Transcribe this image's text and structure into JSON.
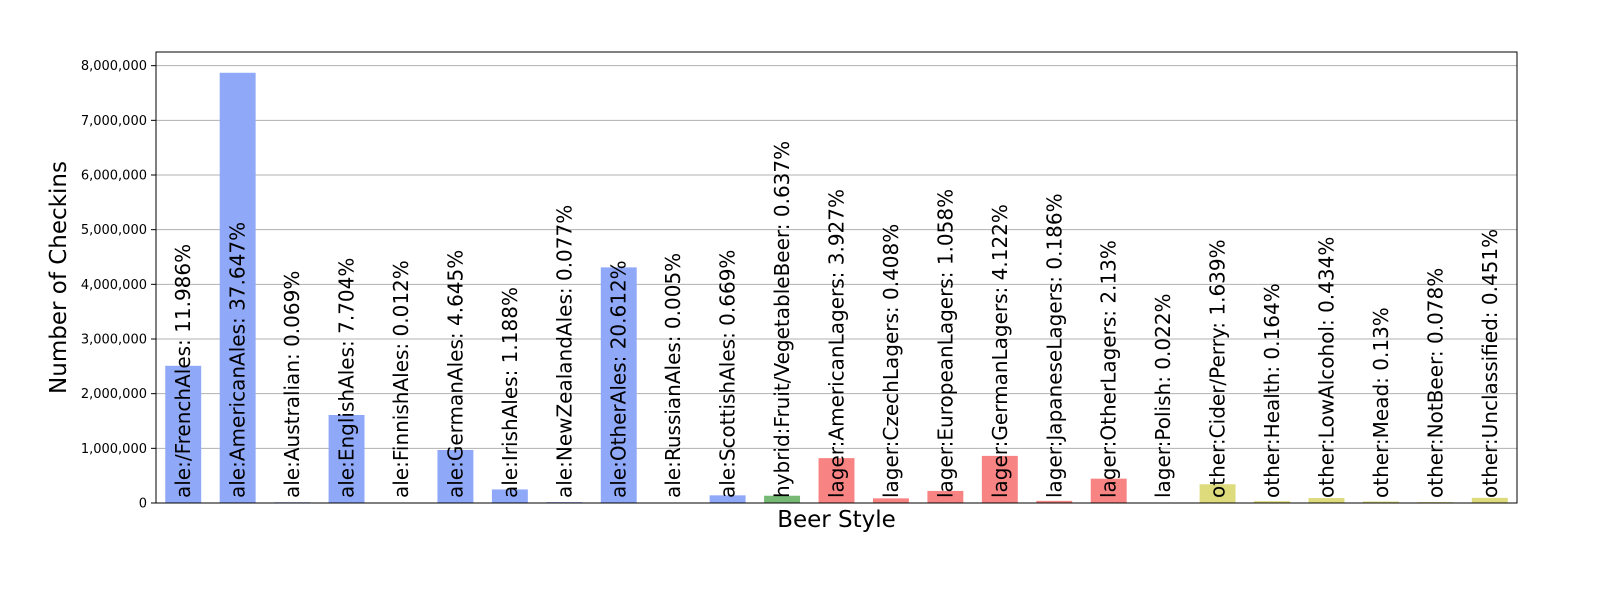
{
  "chart_data": {
    "type": "bar",
    "xlabel": "Beer Style",
    "ylabel": "Number of Checkins",
    "ylim": [
      0,
      8250000
    ],
    "yticks": [
      "0",
      "1,000,000",
      "2,000,000",
      "3,000,000",
      "4,000,000",
      "5,000,000",
      "6,000,000",
      "7,000,000",
      "8,000,000"
    ],
    "ytick_values": [
      0,
      1000000,
      2000000,
      3000000,
      4000000,
      5000000,
      6000000,
      7000000,
      8000000
    ],
    "grid": "horizontal",
    "legend": "none",
    "group_colors": {
      "ale": "#8fa8f8",
      "hybrid": "#75b975",
      "lager": "#f78383",
      "other": "#dddb7b"
    },
    "bars": [
      {
        "group": "ale",
        "value": 2510000,
        "label": "ale:/FrenchAles: 11.986%"
      },
      {
        "group": "ale",
        "value": 7870000,
        "label": "ale:AmericanAles: 37.647%"
      },
      {
        "group": "ale",
        "value": 14000,
        "label": "ale:Australian: 0.069%"
      },
      {
        "group": "ale",
        "value": 1610000,
        "label": "ale:EnglishAles: 7.704%"
      },
      {
        "group": "ale",
        "value": 2500,
        "label": "ale:FinnishAles: 0.012%"
      },
      {
        "group": "ale",
        "value": 970000,
        "label": "ale:GermanAles: 4.645%"
      },
      {
        "group": "ale",
        "value": 248000,
        "label": "ale:IrishAles: 1.188%"
      },
      {
        "group": "ale",
        "value": 16000,
        "label": "ale:NewZealandAles: 0.077%"
      },
      {
        "group": "ale",
        "value": 4310000,
        "label": "ale:OtherAles: 20.612%"
      },
      {
        "group": "ale",
        "value": 1000,
        "label": "ale:RussianAles: 0.005%"
      },
      {
        "group": "ale",
        "value": 140000,
        "label": "ale:ScottishAles: 0.669%"
      },
      {
        "group": "hybrid",
        "value": 133000,
        "label": "hybrid:Fruit/VegetableBeer: 0.637%"
      },
      {
        "group": "lager",
        "value": 821000,
        "label": "lager:AmericanLagers: 3.927%"
      },
      {
        "group": "lager",
        "value": 85000,
        "label": "lager:CzechLagers: 0.408%"
      },
      {
        "group": "lager",
        "value": 221000,
        "label": "lager:EuropeanLagers: 1.058%"
      },
      {
        "group": "lager",
        "value": 862000,
        "label": "lager:GermanLagers: 4.122%"
      },
      {
        "group": "lager",
        "value": 39000,
        "label": "lager:JapaneseLagers: 0.186%"
      },
      {
        "group": "lager",
        "value": 445000,
        "label": "lager:OtherLagers: 2.13%"
      },
      {
        "group": "lager",
        "value": 4600,
        "label": "lager:Polish: 0.022%"
      },
      {
        "group": "other",
        "value": 343000,
        "label": "other:Cider/Perry: 1.639%"
      },
      {
        "group": "other",
        "value": 34000,
        "label": "other:Health: 0.164%"
      },
      {
        "group": "other",
        "value": 91000,
        "label": "other:LowAlcohol: 0.434%"
      },
      {
        "group": "other",
        "value": 27000,
        "label": "other:Mead: 0.13%"
      },
      {
        "group": "other",
        "value": 16000,
        "label": "other:NotBeer: 0.078%"
      },
      {
        "group": "other",
        "value": 94000,
        "label": "other:Unclassified: 0.451%"
      }
    ]
  }
}
